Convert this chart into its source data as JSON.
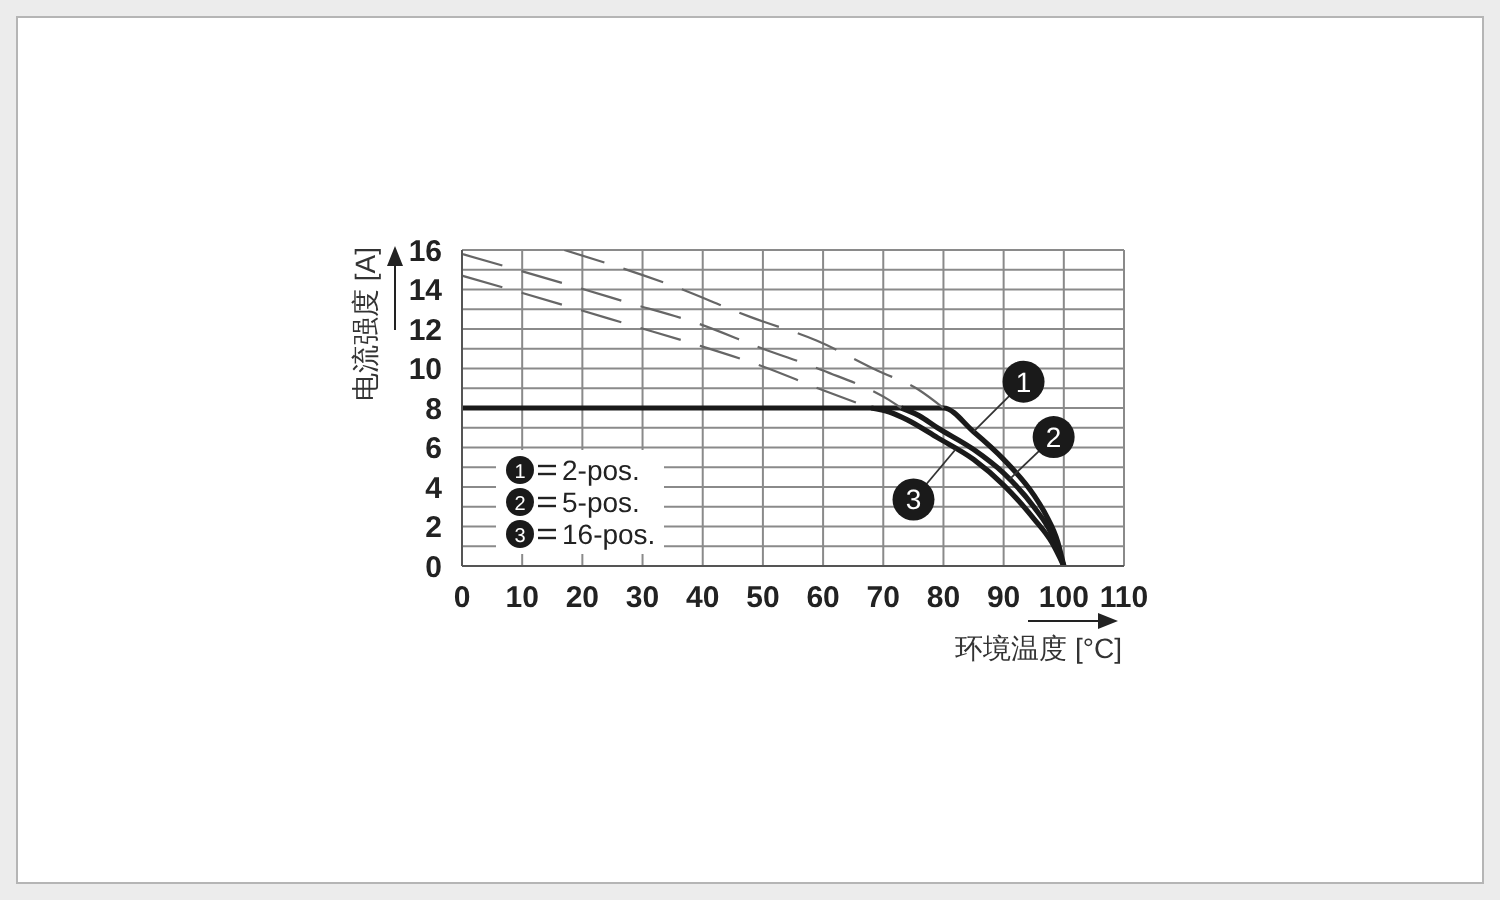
{
  "chart_data": {
    "type": "line",
    "xlabel": "环境温度 [°C]",
    "ylabel": "电流强度 [A]",
    "xlim": [
      0,
      110
    ],
    "xticks": [
      0,
      10,
      20,
      30,
      40,
      50,
      60,
      70,
      80,
      90,
      100,
      110
    ],
    "ylim": [
      0,
      16
    ],
    "yticks": [
      0,
      {
        "value": 1,
        "label": null
      },
      2,
      {
        "value": 3,
        "label": null
      },
      4,
      {
        "value": 5,
        "label": null
      },
      6,
      {
        "value": 7,
        "label": null
      },
      8,
      {
        "value": 9,
        "label": null
      },
      10,
      {
        "value": 11,
        "label": null
      },
      12,
      {
        "value": 13,
        "label": null
      },
      14,
      {
        "value": 15,
        "label": null
      },
      16
    ],
    "grid": true,
    "legend": "bottom left",
    "series": [
      {
        "name": "2-pos.",
        "color": "#1a1a1a",
        "x": [
          0,
          80,
          85,
          90,
          95,
          97,
          99,
          100
        ],
        "values": [
          8,
          8,
          6.8,
          5.4,
          3.6,
          2.6,
          1.2,
          0
        ]
      },
      {
        "name": "5-pos.",
        "color": "#1a1a1a",
        "x": [
          73,
          76,
          79,
          85,
          90,
          95,
          98,
          100
        ],
        "values": [
          8,
          7.6,
          7.0,
          5.9,
          4.7,
          3.0,
          1.6,
          0
        ]
      },
      {
        "name": "16-pos.",
        "color": "#1a1a1a",
        "x": [
          68,
          71,
          74,
          79,
          85,
          90,
          95,
          98,
          100
        ],
        "values": [
          8,
          7.8,
          7.4,
          6.5,
          5.4,
          4.1,
          2.4,
          1.2,
          0
        ]
      },
      {
        "color": "#666666",
        "line_style": "dashed",
        "x": [
          17,
          34,
          48,
          59,
          69,
          76,
          80
        ],
        "values": [
          16,
          14.3,
          12.6,
          11.4,
          9.9,
          8.9,
          8
        ]
      },
      {
        "color": "#666666",
        "line_style": "dashed",
        "x": [
          0,
          17,
          28,
          39,
          50,
          60,
          71,
          73
        ],
        "values": [
          15.8,
          14.3,
          13.3,
          12.3,
          11.0,
          9.9,
          8.4,
          8
        ]
      },
      {
        "color": "#666666",
        "line_style": "dashed",
        "x": [
          0,
          17,
          28,
          39,
          50,
          60,
          68
        ],
        "values": [
          14.7,
          13.2,
          12.2,
          11.2,
          10.1,
          8.9,
          8
        ]
      }
    ],
    "annotations": [
      {
        "text": "1",
        "x": 85,
        "y": 6.8
      },
      {
        "text": "2",
        "x": 91,
        "y": 4.4
      },
      {
        "text": "3",
        "x": 82,
        "y": 5.9
      }
    ]
  }
}
